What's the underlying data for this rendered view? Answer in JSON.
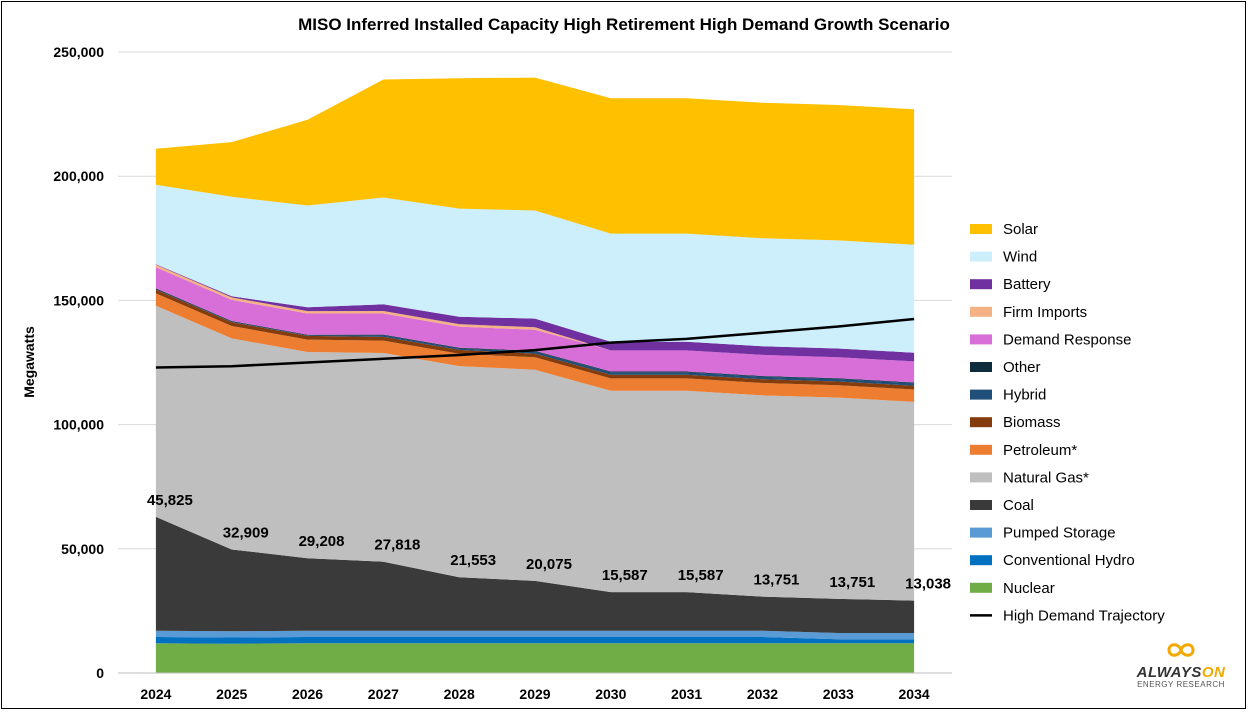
{
  "chart_data": {
    "type": "area",
    "title": "MISO Inferred Installed Capacity High Retirement High Demand Growth Scenario",
    "ylabel": "Megawatts",
    "xlabel": "",
    "ylim": [
      0,
      250000
    ],
    "yticks": [
      0,
      50000,
      100000,
      150000,
      200000,
      250000
    ],
    "ytick_labels": [
      "0",
      "50,000",
      "100,000",
      "150,000",
      "200,000",
      "250,000"
    ],
    "categories": [
      "2024",
      "2025",
      "2026",
      "2027",
      "2028",
      "2029",
      "2030",
      "2031",
      "2032",
      "2033",
      "2034"
    ],
    "grid": true,
    "legend_placement": "right",
    "stack_order_bottom_to_top": [
      "Nuclear",
      "Conventional Hydro",
      "Pumped Storage",
      "Coal",
      "Natural Gas*",
      "Petroleum*",
      "Biomass",
      "Hybrid",
      "Other",
      "Demand Response",
      "Firm Imports",
      "Battery",
      "Wind",
      "Solar"
    ],
    "series": [
      {
        "name": "Nuclear",
        "color": "#70ad47",
        "values": [
          12000,
          11800,
          12000,
          12000,
          12000,
          12000,
          12000,
          12000,
          12000,
          12000,
          12000
        ]
      },
      {
        "name": "Conventional Hydro",
        "color": "#0070c0",
        "values": [
          2500,
          2500,
          2500,
          2500,
          2500,
          2500,
          2500,
          2500,
          2500,
          1600,
          1600
        ]
      },
      {
        "name": "Pumped Storage",
        "color": "#5b9bd5",
        "values": [
          2500,
          2500,
          2500,
          2500,
          2500,
          2500,
          2500,
          2500,
          2500,
          2500,
          2500
        ]
      },
      {
        "name": "Coal",
        "color": "#3a3a3a",
        "values": [
          45825,
          32909,
          29208,
          27818,
          21553,
          20075,
          15587,
          15587,
          13751,
          13751,
          13038
        ]
      },
      {
        "name": "Natural Gas*",
        "color": "#bfbfbf",
        "values": [
          85000,
          85000,
          83000,
          84000,
          85000,
          85000,
          81000,
          81000,
          81000,
          81000,
          80000
        ]
      },
      {
        "name": "Petroleum*",
        "color": "#ed7d31",
        "values": [
          5000,
          5000,
          5000,
          5000,
          5000,
          5000,
          5000,
          5000,
          5000,
          5000,
          5000
        ]
      },
      {
        "name": "Biomass",
        "color": "#843c0c",
        "values": [
          1500,
          1500,
          1500,
          1500,
          1500,
          1500,
          1500,
          1500,
          1500,
          1500,
          1500
        ]
      },
      {
        "name": "Hybrid",
        "color": "#1f4e79",
        "values": [
          200,
          200,
          200,
          600,
          600,
          800,
          1000,
          1000,
          1000,
          1000,
          1000
        ]
      },
      {
        "name": "Other",
        "color": "#0d2d3c",
        "values": [
          300,
          300,
          300,
          300,
          300,
          300,
          300,
          300,
          300,
          300,
          300
        ]
      },
      {
        "name": "Demand Response",
        "color": "#d86ed8",
        "values": [
          8500,
          8500,
          8500,
          8500,
          8500,
          8500,
          8500,
          8500,
          8500,
          8500,
          8500
        ]
      },
      {
        "name": "Firm Imports",
        "color": "#f4b183",
        "values": [
          1000,
          1000,
          1000,
          1000,
          1000,
          1000,
          0,
          0,
          0,
          0,
          0
        ]
      },
      {
        "name": "Battery",
        "color": "#7030a0",
        "values": [
          200,
          500,
          1500,
          2700,
          3000,
          3500,
          3500,
          3500,
          3500,
          3500,
          3500
        ]
      },
      {
        "name": "Wind",
        "color": "#cdeefb",
        "values": [
          32000,
          40000,
          41000,
          43000,
          43500,
          43500,
          43500,
          43500,
          43500,
          43500,
          43500
        ]
      },
      {
        "name": "Solar",
        "color": "#ffc000",
        "values": [
          14500,
          22000,
          34500,
          47500,
          52500,
          53500,
          54500,
          54500,
          54500,
          54500,
          54500
        ]
      }
    ],
    "line_series": {
      "name": "High Demand Trajectory",
      "color": "#000000",
      "values": [
        123000,
        123500,
        125000,
        126500,
        128000,
        130000,
        133000,
        134500,
        137000,
        139500,
        142500
      ]
    },
    "data_labels": [
      {
        "category": "2024",
        "text": "45,825"
      },
      {
        "category": "2025",
        "text": "32,909"
      },
      {
        "category": "2026",
        "text": "29,208"
      },
      {
        "category": "2027",
        "text": "27,818"
      },
      {
        "category": "2028",
        "text": "21,553"
      },
      {
        "category": "2029",
        "text": "20,075"
      },
      {
        "category": "2030",
        "text": "15,587"
      },
      {
        "category": "2031",
        "text": "15,587"
      },
      {
        "category": "2032",
        "text": "13,751"
      },
      {
        "category": "2033",
        "text": "13,751"
      },
      {
        "category": "2034",
        "text": "13,038"
      }
    ],
    "legend": [
      "Solar",
      "Wind",
      "Battery",
      "Firm Imports",
      "Demand Response",
      "Other",
      "Hybrid",
      "Biomass",
      "Petroleum*",
      "Natural Gas*",
      "Coal",
      "Pumped Storage",
      "Conventional Hydro",
      "Nuclear",
      "High Demand Trajectory"
    ]
  },
  "logo": {
    "brand_a": "ALWAYS",
    "brand_b": "ON",
    "sub": "ENERGY RESEARCH"
  }
}
